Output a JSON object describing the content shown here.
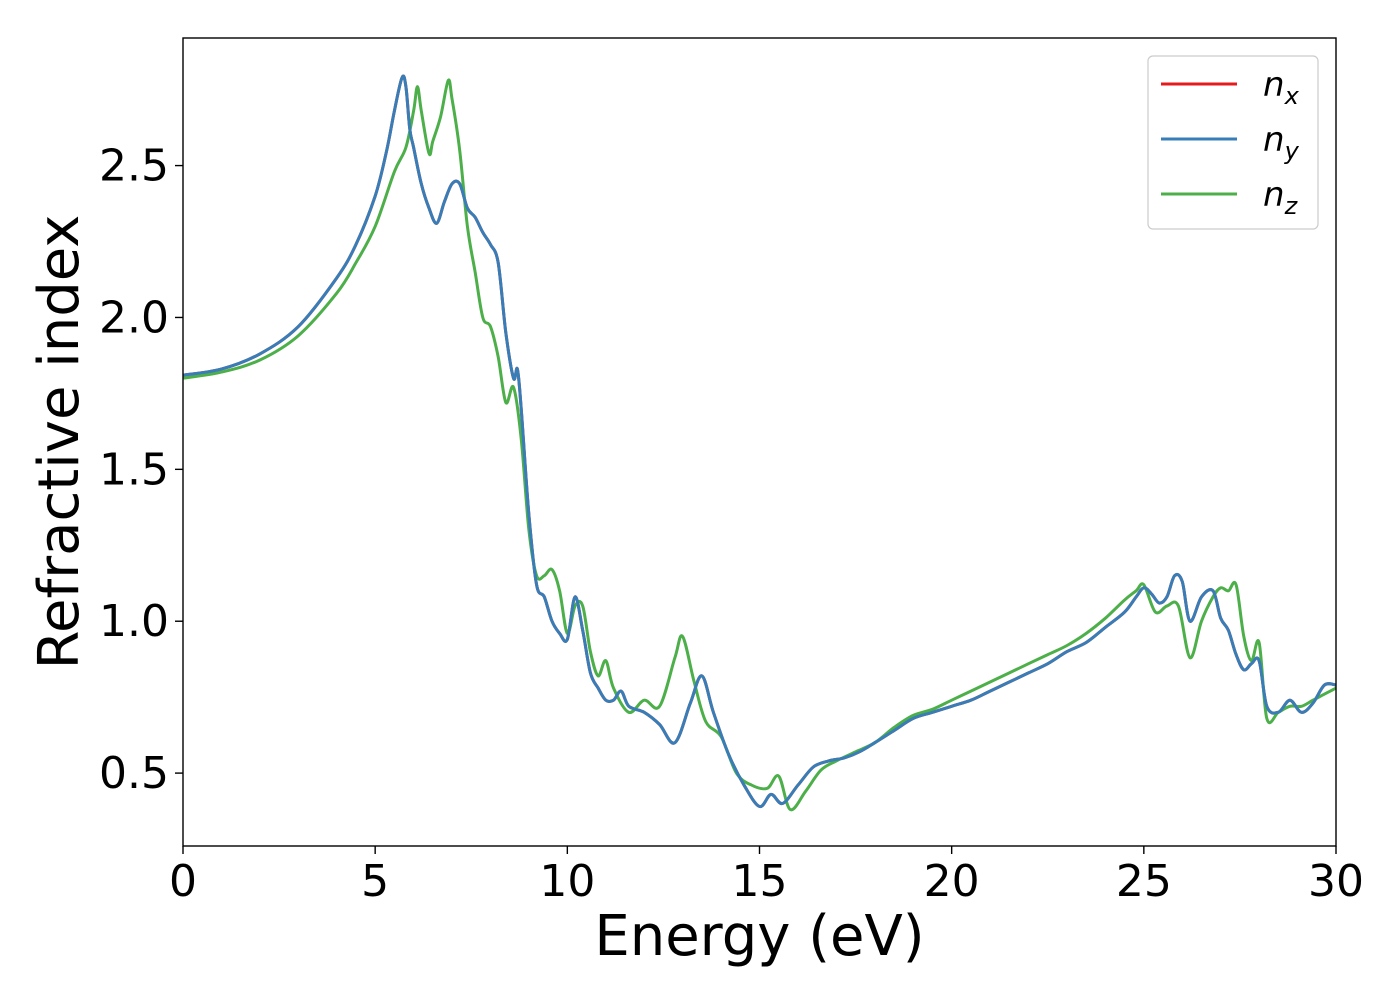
{
  "chart_data": {
    "type": "line",
    "title": "",
    "xlabel": "Energy (eV)",
    "ylabel": "Refractive index",
    "xlim": [
      0,
      30
    ],
    "ylim": [
      0.26,
      2.92
    ],
    "xticks": [
      0,
      5,
      10,
      15,
      20,
      25,
      30
    ],
    "xtick_labels": [
      "0",
      "5",
      "10",
      "15",
      "20",
      "25",
      "30"
    ],
    "yticks": [
      0.5,
      1.0,
      1.5,
      2.0,
      2.5
    ],
    "ytick_labels": [
      "0.5",
      "1.0",
      "1.5",
      "2.0",
      "2.5"
    ],
    "grid": false,
    "legend_position": "top-right",
    "colors": {
      "nx": "#e41a1c",
      "ny": "#377eb8",
      "nz": "#4daf4a"
    },
    "series": [
      {
        "name": "n_x",
        "legend_base": "n",
        "legend_sub": "x",
        "color": "#e41a1c",
        "x": [
          0,
          1,
          2,
          3,
          4,
          4.5,
          5,
          5.3,
          5.5,
          5.7,
          5.8,
          5.9,
          6.0,
          6.2,
          6.4,
          6.6,
          6.8,
          7.0,
          7.2,
          7.4,
          7.6,
          7.8,
          8.0,
          8.2,
          8.4,
          8.6,
          8.7,
          8.8,
          9.0,
          9.2,
          9.4,
          9.6,
          9.8,
          10.0,
          10.2,
          10.4,
          10.6,
          10.8,
          11.0,
          11.2,
          11.4,
          11.6,
          12.0,
          12.4,
          12.8,
          13.2,
          13.5,
          13.8,
          14.2,
          14.6,
          15.0,
          15.3,
          15.6,
          16.0,
          16.4,
          16.8,
          17.2,
          17.6,
          18,
          18.5,
          19,
          19.5,
          20,
          20.5,
          21,
          21.5,
          22,
          22.5,
          23,
          23.5,
          24,
          24.5,
          24.8,
          25.0,
          25.2,
          25.4,
          25.6,
          25.8,
          26.0,
          26.2,
          26.5,
          26.8,
          27.0,
          27.2,
          27.4,
          27.6,
          27.8,
          28.0,
          28.2,
          28.5,
          28.8,
          29.1,
          29.4,
          29.7,
          30.0
        ],
        "y": [
          1.81,
          1.83,
          1.88,
          1.97,
          2.13,
          2.24,
          2.4,
          2.55,
          2.68,
          2.79,
          2.76,
          2.62,
          2.56,
          2.44,
          2.36,
          2.31,
          2.38,
          2.44,
          2.44,
          2.36,
          2.33,
          2.28,
          2.24,
          2.18,
          1.95,
          1.8,
          1.83,
          1.7,
          1.35,
          1.12,
          1.08,
          1.0,
          0.96,
          0.94,
          1.08,
          0.97,
          0.83,
          0.78,
          0.74,
          0.74,
          0.77,
          0.72,
          0.7,
          0.66,
          0.6,
          0.73,
          0.82,
          0.7,
          0.56,
          0.46,
          0.39,
          0.43,
          0.4,
          0.46,
          0.52,
          0.54,
          0.55,
          0.57,
          0.6,
          0.64,
          0.68,
          0.7,
          0.72,
          0.74,
          0.77,
          0.8,
          0.83,
          0.86,
          0.9,
          0.93,
          0.98,
          1.03,
          1.08,
          1.11,
          1.09,
          1.06,
          1.08,
          1.15,
          1.13,
          1.0,
          1.08,
          1.1,
          1.01,
          0.97,
          0.89,
          0.84,
          0.86,
          0.87,
          0.72,
          0.7,
          0.74,
          0.7,
          0.73,
          0.79,
          0.79
        ]
      },
      {
        "name": "n_y",
        "legend_base": "n",
        "legend_sub": "y",
        "color": "#377eb8",
        "x": [
          0,
          1,
          2,
          3,
          4,
          4.5,
          5,
          5.3,
          5.5,
          5.7,
          5.8,
          5.9,
          6.0,
          6.2,
          6.4,
          6.6,
          6.8,
          7.0,
          7.2,
          7.4,
          7.6,
          7.8,
          8.0,
          8.2,
          8.4,
          8.6,
          8.7,
          8.8,
          9.0,
          9.2,
          9.4,
          9.6,
          9.8,
          10.0,
          10.2,
          10.4,
          10.6,
          10.8,
          11.0,
          11.2,
          11.4,
          11.6,
          12.0,
          12.4,
          12.8,
          13.2,
          13.5,
          13.8,
          14.2,
          14.6,
          15.0,
          15.3,
          15.6,
          16.0,
          16.4,
          16.8,
          17.2,
          17.6,
          18,
          18.5,
          19,
          19.5,
          20,
          20.5,
          21,
          21.5,
          22,
          22.5,
          23,
          23.5,
          24,
          24.5,
          24.8,
          25.0,
          25.2,
          25.4,
          25.6,
          25.8,
          26.0,
          26.2,
          26.5,
          26.8,
          27.0,
          27.2,
          27.4,
          27.6,
          27.8,
          28.0,
          28.2,
          28.5,
          28.8,
          29.1,
          29.4,
          29.7,
          30.0
        ],
        "y": [
          1.81,
          1.83,
          1.88,
          1.97,
          2.13,
          2.24,
          2.4,
          2.55,
          2.68,
          2.79,
          2.76,
          2.62,
          2.56,
          2.44,
          2.36,
          2.31,
          2.38,
          2.44,
          2.44,
          2.36,
          2.33,
          2.28,
          2.24,
          2.18,
          1.95,
          1.8,
          1.83,
          1.7,
          1.35,
          1.12,
          1.08,
          1.0,
          0.96,
          0.94,
          1.08,
          0.97,
          0.83,
          0.78,
          0.74,
          0.74,
          0.77,
          0.72,
          0.7,
          0.66,
          0.6,
          0.73,
          0.82,
          0.7,
          0.56,
          0.46,
          0.39,
          0.43,
          0.4,
          0.46,
          0.52,
          0.54,
          0.55,
          0.57,
          0.6,
          0.64,
          0.68,
          0.7,
          0.72,
          0.74,
          0.77,
          0.8,
          0.83,
          0.86,
          0.9,
          0.93,
          0.98,
          1.03,
          1.08,
          1.11,
          1.09,
          1.06,
          1.08,
          1.15,
          1.13,
          1.0,
          1.08,
          1.1,
          1.01,
          0.97,
          0.89,
          0.84,
          0.86,
          0.87,
          0.72,
          0.7,
          0.74,
          0.7,
          0.73,
          0.79,
          0.79
        ]
      },
      {
        "name": "n_z",
        "legend_base": "n",
        "legend_sub": "z",
        "color": "#4daf4a",
        "x": [
          0,
          1,
          2,
          3,
          4,
          4.5,
          5,
          5.5,
          5.8,
          6.0,
          6.1,
          6.2,
          6.4,
          6.5,
          6.7,
          6.9,
          7.0,
          7.2,
          7.4,
          7.6,
          7.8,
          8.0,
          8.2,
          8.4,
          8.6,
          8.8,
          9.0,
          9.2,
          9.4,
          9.6,
          9.8,
          10.0,
          10.2,
          10.4,
          10.6,
          10.8,
          11.0,
          11.2,
          11.6,
          12.0,
          12.4,
          12.8,
          13.0,
          13.3,
          13.6,
          14.0,
          14.4,
          14.8,
          15.2,
          15.5,
          15.8,
          16.2,
          16.6,
          17.0,
          17.5,
          18,
          18.5,
          19,
          19.5,
          20,
          20.5,
          21,
          21.5,
          22,
          22.5,
          23,
          23.5,
          24,
          24.5,
          24.8,
          25.0,
          25.3,
          25.6,
          25.9,
          26.2,
          26.5,
          26.8,
          27.0,
          27.2,
          27.4,
          27.6,
          27.8,
          28.0,
          28.2,
          28.5,
          28.8,
          29.1,
          29.4,
          29.7,
          30.0
        ],
        "y": [
          1.8,
          1.82,
          1.86,
          1.94,
          2.08,
          2.18,
          2.3,
          2.48,
          2.56,
          2.68,
          2.76,
          2.68,
          2.54,
          2.58,
          2.66,
          2.78,
          2.72,
          2.55,
          2.3,
          2.15,
          2.0,
          1.97,
          1.87,
          1.72,
          1.77,
          1.6,
          1.3,
          1.15,
          1.15,
          1.17,
          1.1,
          0.96,
          1.05,
          1.05,
          0.9,
          0.82,
          0.87,
          0.78,
          0.7,
          0.74,
          0.72,
          0.88,
          0.95,
          0.8,
          0.67,
          0.62,
          0.5,
          0.46,
          0.45,
          0.49,
          0.38,
          0.44,
          0.51,
          0.54,
          0.57,
          0.6,
          0.65,
          0.69,
          0.71,
          0.74,
          0.77,
          0.8,
          0.83,
          0.86,
          0.89,
          0.92,
          0.96,
          1.01,
          1.07,
          1.1,
          1.12,
          1.03,
          1.05,
          1.05,
          0.88,
          1.0,
          1.08,
          1.11,
          1.1,
          1.12,
          0.95,
          0.87,
          0.93,
          0.68,
          0.7,
          0.72,
          0.72,
          0.74,
          0.76,
          0.78
        ]
      }
    ]
  }
}
